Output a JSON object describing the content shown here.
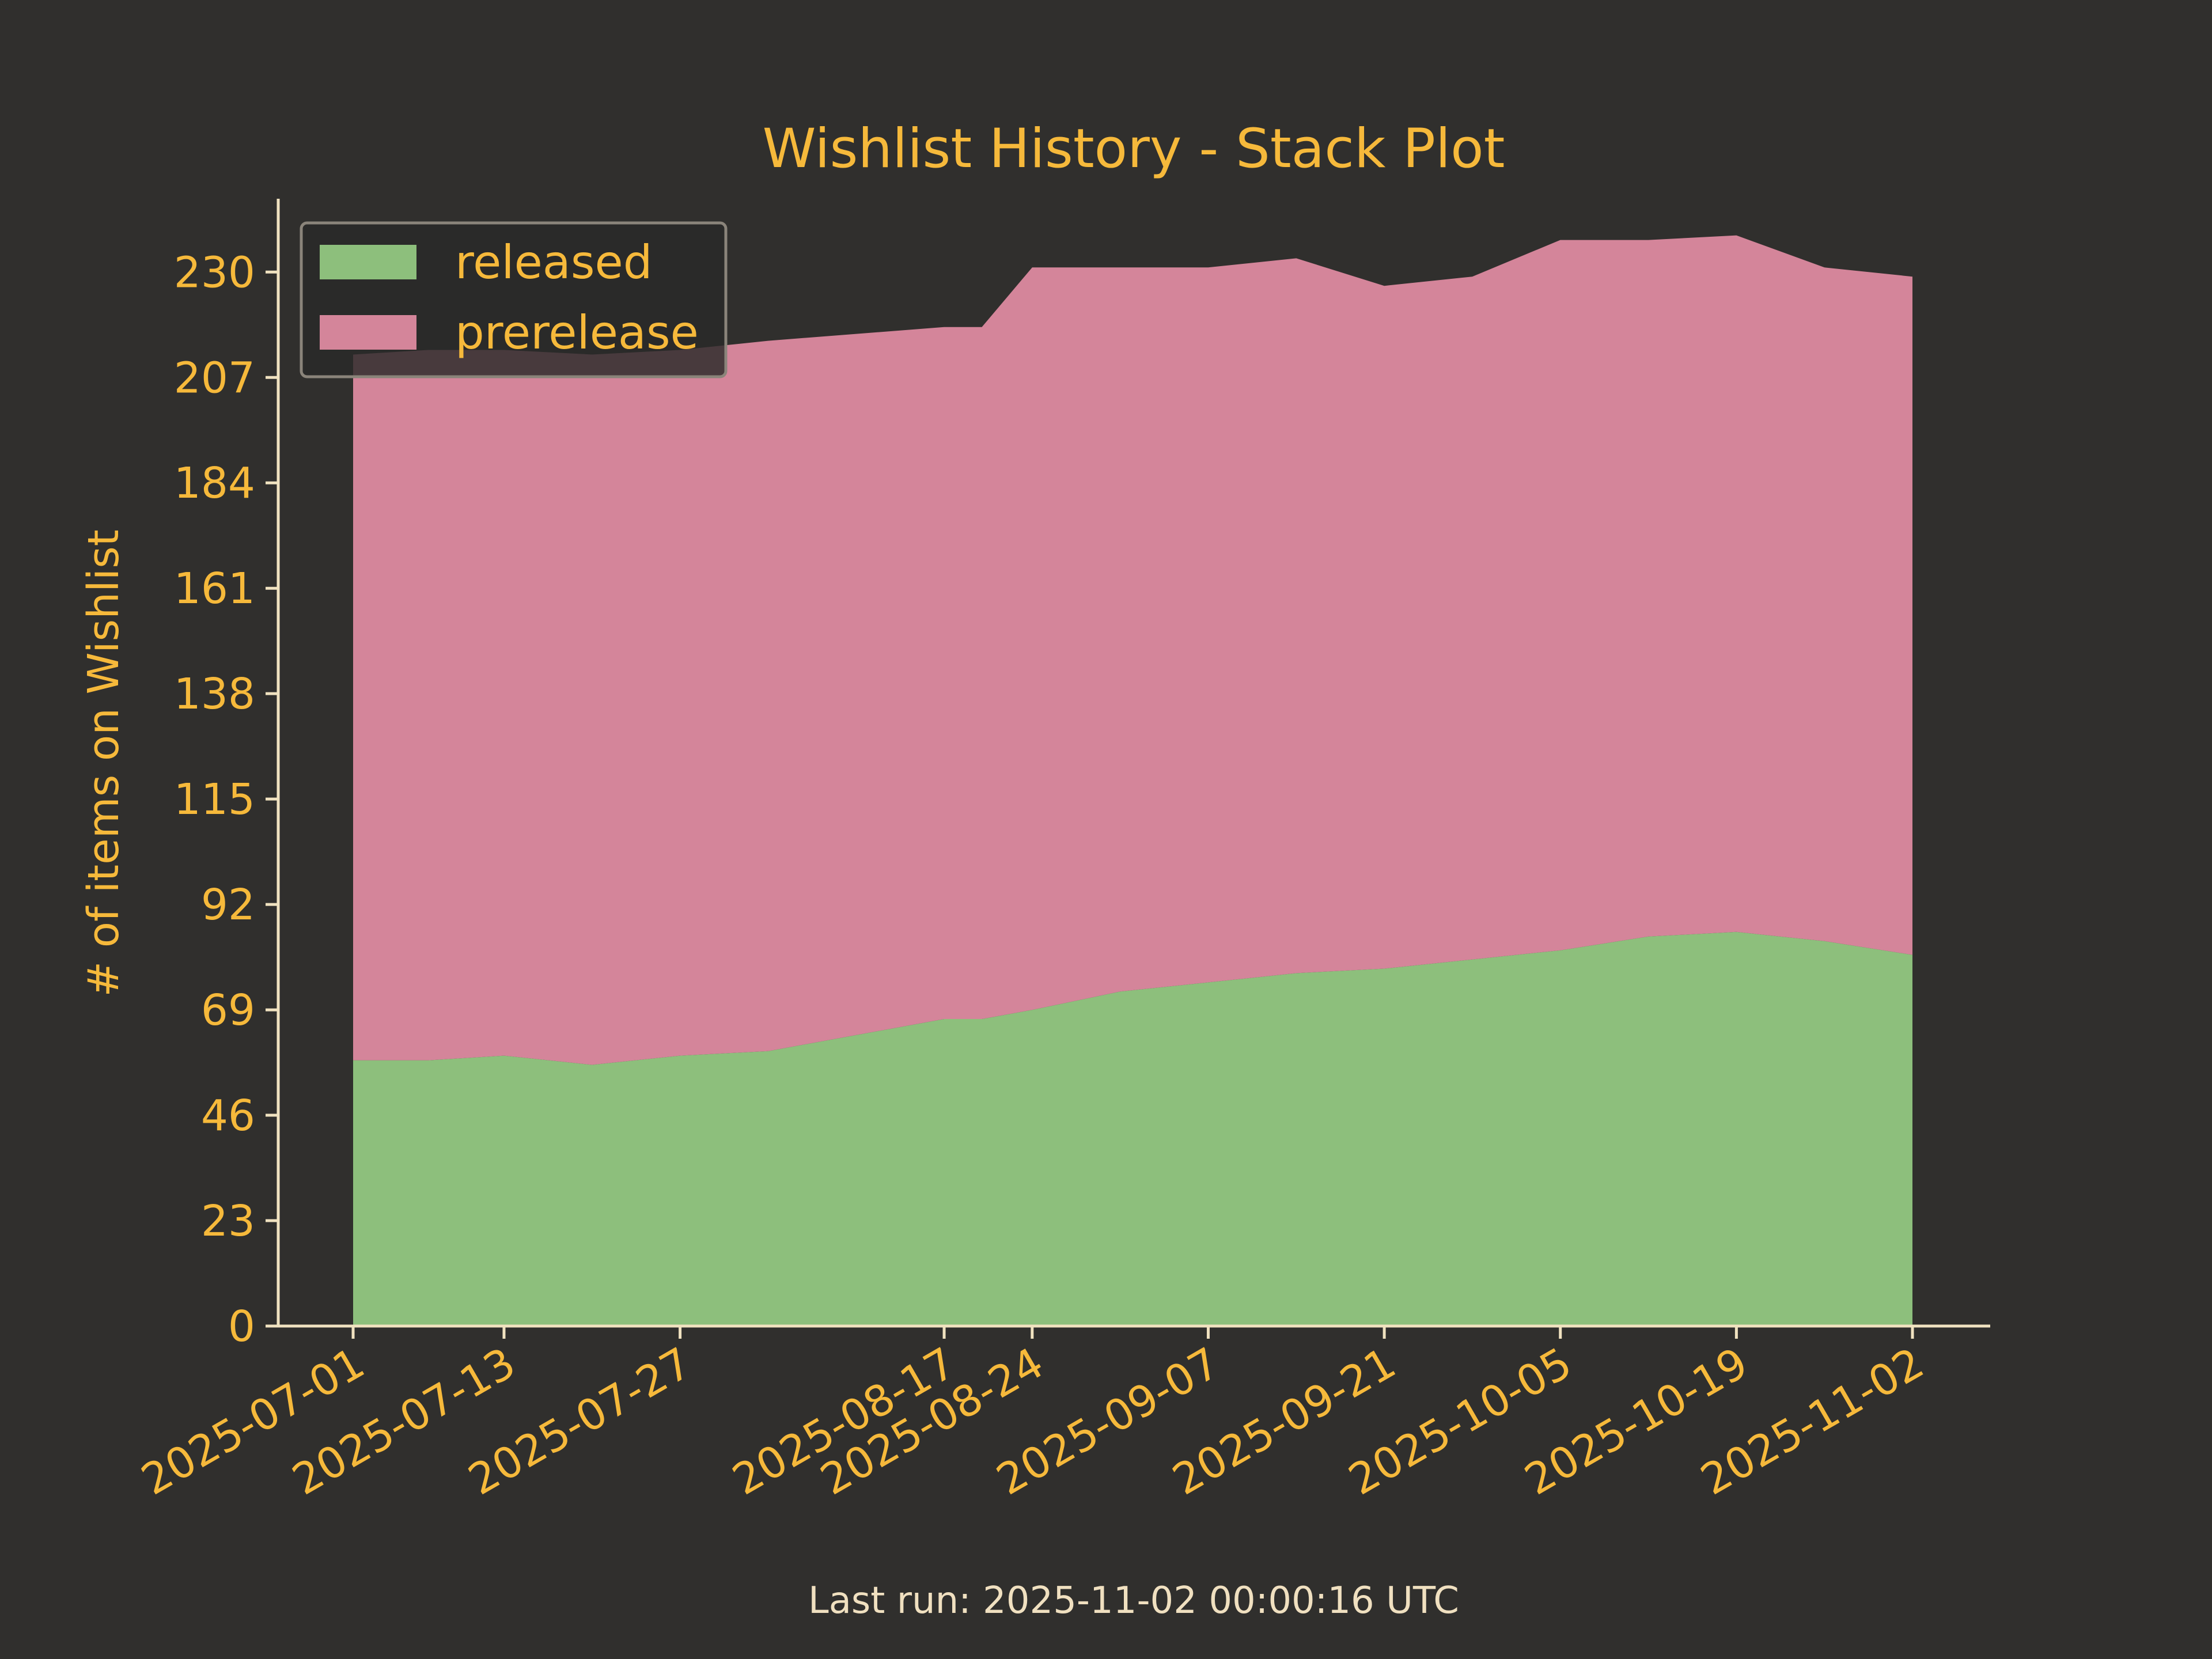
{
  "chart_data": {
    "type": "area",
    "stacked": true,
    "title": "Wishlist History - Stack Plot",
    "xlabel": "",
    "ylabel": "# of items on Wishlist",
    "footer": "Last run: 2025-11-02 00:00:16 UTC",
    "ylim": [
      0,
      246
    ],
    "yticks": [
      0,
      23,
      46,
      69,
      92,
      115,
      138,
      161,
      184,
      207,
      230
    ],
    "x": [
      "2025-07-01",
      "2025-07-07",
      "2025-07-13",
      "2025-07-20",
      "2025-07-27",
      "2025-08-03",
      "2025-08-17",
      "2025-08-20",
      "2025-08-24",
      "2025-08-31",
      "2025-09-07",
      "2025-09-14",
      "2025-09-21",
      "2025-09-28",
      "2025-10-05",
      "2025-10-12",
      "2025-10-19",
      "2025-10-26",
      "2025-11-02"
    ],
    "xticks": [
      "2025-07-01",
      "2025-07-13",
      "2025-07-27",
      "2025-08-17",
      "2025-08-24",
      "2025-09-07",
      "2025-09-21",
      "2025-10-05",
      "2025-10-19",
      "2025-11-02"
    ],
    "series": [
      {
        "name": "released",
        "color": "#8dbf7c",
        "values": [
          58,
          58,
          59,
          57,
          59,
          60,
          67,
          67,
          69,
          73,
          75,
          77,
          78,
          80,
          82,
          85,
          86,
          84,
          81
        ]
      },
      {
        "name": "prerelease",
        "color": "#d4859a",
        "values": [
          154,
          155,
          154,
          155,
          154,
          155,
          151,
          151,
          162,
          158,
          156,
          156,
          149,
          149,
          155,
          152,
          152,
          147,
          148
        ]
      }
    ],
    "legend": {
      "position": "upper-left"
    }
  }
}
